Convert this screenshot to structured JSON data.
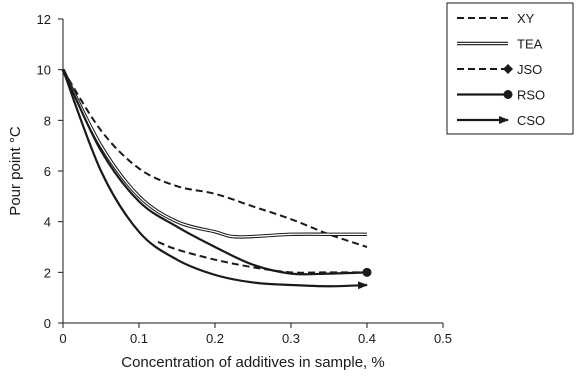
{
  "chart_data": {
    "type": "line",
    "title": "",
    "xlabel": "Concentration of additives in sample, %",
    "ylabel": "Pour point °C",
    "xlim": [
      0,
      0.5
    ],
    "ylim": [
      0,
      12
    ],
    "x_ticks": [
      0,
      0.1,
      0.2,
      0.3,
      0.4,
      0.5
    ],
    "x_tick_labels": [
      "0",
      "0.1",
      "0.2",
      "0.3",
      "0.4",
      "0.5"
    ],
    "y_ticks": [
      0,
      2,
      4,
      6,
      8,
      10,
      12
    ],
    "y_tick_labels": [
      "0",
      "2",
      "4",
      "6",
      "8",
      "10",
      "12"
    ],
    "grid": false,
    "legend_position": "top-right outside plot",
    "series": [
      {
        "name": "XY",
        "style": "dashed",
        "marker": "none",
        "x": [
          0,
          0.05,
          0.1,
          0.15,
          0.2,
          0.25,
          0.3,
          0.35,
          0.4
        ],
        "y": [
          10,
          7.6,
          6.1,
          5.4,
          5.1,
          4.6,
          4.1,
          3.5,
          3.0
        ]
      },
      {
        "name": "TEA",
        "style": "double",
        "marker": "none",
        "x": [
          0,
          0.05,
          0.1,
          0.15,
          0.2,
          0.23,
          0.3,
          0.35,
          0.4
        ],
        "y": [
          10,
          7.0,
          5.0,
          4.0,
          3.6,
          3.4,
          3.5,
          3.5,
          3.5
        ]
      },
      {
        "name": "JSO",
        "style": "dashed",
        "marker": "diamond",
        "x": [
          0.125,
          0.15,
          0.2,
          0.25,
          0.3,
          0.35,
          0.4
        ],
        "y": [
          3.2,
          2.9,
          2.5,
          2.2,
          2.0,
          2.0,
          2.0
        ]
      },
      {
        "name": "RSO",
        "style": "solid",
        "marker": "circle",
        "x": [
          0,
          0.05,
          0.1,
          0.15,
          0.2,
          0.25,
          0.3,
          0.35,
          0.4
        ],
        "y": [
          10,
          6.8,
          4.8,
          3.8,
          3.0,
          2.3,
          1.95,
          1.95,
          2.0
        ]
      },
      {
        "name": "CSO",
        "style": "solid",
        "marker": "arrow",
        "x": [
          0,
          0.05,
          0.1,
          0.15,
          0.2,
          0.25,
          0.3,
          0.35,
          0.4
        ],
        "y": [
          10,
          6.0,
          3.6,
          2.5,
          1.9,
          1.6,
          1.5,
          1.45,
          1.5
        ]
      }
    ]
  }
}
